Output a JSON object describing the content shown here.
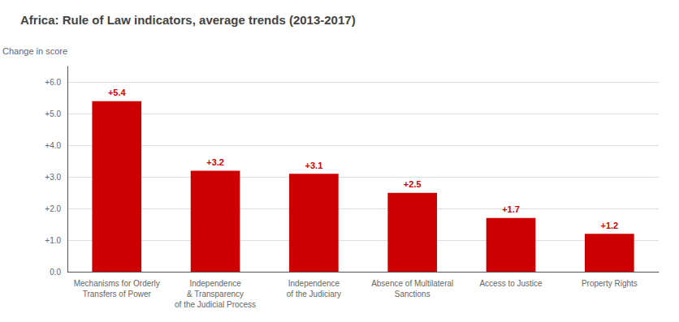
{
  "chart_data": {
    "type": "bar",
    "title": "Africa: Rule of Law indicators, average trends (2013-2017)",
    "ylabel": "Change in score",
    "categories": [
      "Mechanisms for Orderly\nTransfers of Power",
      "Independence\n& Transparency\nof the Judicial Process",
      "Independence\nof the Judiciary",
      "Absence of Multilateral\nSanctions",
      "Access to Justice",
      "Property Rights"
    ],
    "values": [
      5.4,
      3.2,
      3.1,
      2.5,
      1.7,
      1.2
    ],
    "value_labels": [
      "+5.4",
      "+3.2",
      "+3.1",
      "+2.5",
      "+1.7",
      "+1.2"
    ],
    "data_labels": true,
    "color": "#cc0000",
    "ylim": [
      0.0,
      6.5
    ],
    "yticks": [
      {
        "value": 0.0,
        "label": "0.0"
      },
      {
        "value": 1.0,
        "label": "+1.0"
      },
      {
        "value": 2.0,
        "label": "+2.0"
      },
      {
        "value": 3.0,
        "label": "+3.0"
      },
      {
        "value": 4.0,
        "label": "+4.0"
      },
      {
        "value": 5.0,
        "label": "+5.0"
      },
      {
        "value": 6.0,
        "label": "+6.0"
      }
    ],
    "grid": true
  }
}
